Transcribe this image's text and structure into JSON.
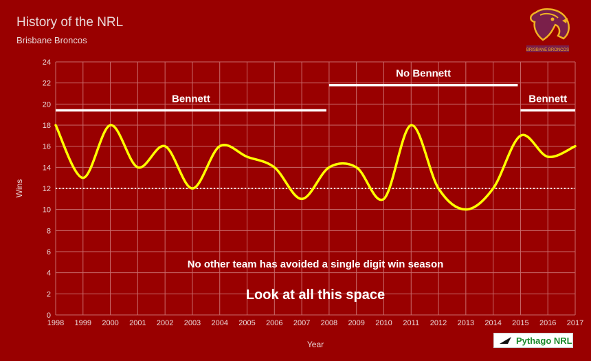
{
  "header": {
    "title": "History of the NRL",
    "subtitle": "Brisbane Broncos"
  },
  "logo": {
    "icon": "broncos-horse-logo-icon",
    "text": "BRISBANE BRONCOS"
  },
  "badge": {
    "icon": "pythago-arrow-icon",
    "text": "Pythago NRL"
  },
  "colors": {
    "background": "#990000",
    "line": "#ffff00",
    "grid": "#c96b6b",
    "text": "#ead9d9",
    "annotation": "#ffffff"
  },
  "chart_data": {
    "type": "line",
    "title": "History of the NRL",
    "subtitle": "Brisbane Broncos",
    "xlabel": "Year",
    "ylabel": "Wins",
    "ylim": [
      0,
      24
    ],
    "yticks": [
      0,
      2,
      4,
      6,
      8,
      10,
      12,
      14,
      16,
      18,
      20,
      22,
      24
    ],
    "x": [
      1998,
      1999,
      2000,
      2001,
      2002,
      2003,
      2004,
      2005,
      2006,
      2007,
      2008,
      2009,
      2010,
      2011,
      2012,
      2013,
      2014,
      2015,
      2016,
      2017
    ],
    "series": [
      {
        "name": "Wins",
        "values": [
          18,
          13,
          18,
          14,
          16,
          12,
          16,
          15,
          14,
          11,
          14,
          14,
          11,
          18,
          12,
          10,
          12,
          17,
          15,
          16
        ]
      }
    ],
    "reference_line": {
      "value": 12,
      "style": "dotted"
    },
    "grid": true,
    "eras": [
      {
        "label": "Bennett",
        "start": 1998,
        "end": 2007.9,
        "level": 19.4
      },
      {
        "label": "No Bennett",
        "start": 2008,
        "end": 2014.9,
        "level": 21.8
      },
      {
        "label": "Bennett",
        "start": 2015,
        "end": 2017,
        "level": 19.4
      }
    ],
    "annotations": [
      {
        "text": "No other team has avoided a single digit win season",
        "x": 2007.5,
        "y": 4.5,
        "size": "small"
      },
      {
        "text": "Look at all this space",
        "x": 2007.5,
        "y": 1.5,
        "size": "large"
      }
    ]
  }
}
